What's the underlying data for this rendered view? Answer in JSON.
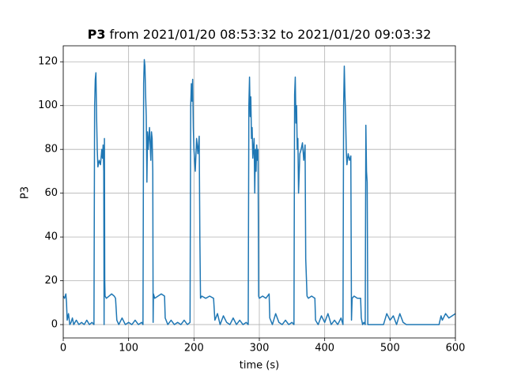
{
  "chart_data": {
    "type": "line",
    "title": {
      "name": "P3",
      "text": "from 2021/01/20 08:53:32 to 2021/01/20 09:03:32"
    },
    "xlabel": "time (s)",
    "ylabel": "P3",
    "xlim": [
      0,
      600
    ],
    "ylim": [
      -6.1,
      127.3
    ],
    "xticks": [
      0,
      100,
      200,
      300,
      400,
      500,
      600
    ],
    "yticks": [
      0,
      20,
      40,
      60,
      80,
      100,
      120
    ],
    "grid": true,
    "series": [
      {
        "name": "P3",
        "color": "#1f77b4",
        "x": [
          0,
          2,
          4,
          5,
          6,
          8,
          10,
          12,
          14,
          16,
          20,
          24,
          28,
          32,
          36,
          40,
          44,
          47,
          48,
          49,
          50,
          51,
          52,
          53,
          55,
          57,
          59,
          60,
          61,
          62,
          62.5,
          63,
          63.5,
          64,
          66,
          70,
          74,
          78,
          80,
          82,
          85,
          90,
          95,
          100,
          105,
          110,
          115,
          120,
          122,
          123,
          124,
          125,
          126,
          127,
          128,
          129,
          130,
          132,
          134,
          135,
          136,
          137,
          137.5,
          138,
          140,
          145,
          150,
          155,
          156,
          160,
          165,
          170,
          175,
          180,
          185,
          190,
          194,
          195,
          196,
          197,
          198,
          199,
          200,
          202,
          204,
          206,
          208,
          209,
          210,
          212,
          218,
          224,
          230,
          232,
          236,
          240,
          245,
          250,
          255,
          260,
          265,
          270,
          275,
          280,
          283,
          284,
          285,
          286,
          287,
          288,
          289,
          290,
          292,
          293,
          294,
          295,
          296,
          297,
          298,
          299,
          300,
          305,
          310,
          315,
          316,
          320,
          325,
          330,
          335,
          340,
          345,
          350,
          353,
          354,
          355,
          356,
          357,
          358,
          359,
          360,
          362,
          364,
          366,
          368,
          370,
          371,
          373,
          375,
          380,
          385,
          386,
          390,
          395,
          400,
          405,
          410,
          415,
          420,
          425,
          428,
          429,
          430,
          431,
          432,
          433,
          434,
          436,
          438,
          440,
          441,
          442,
          445,
          450,
          455,
          456,
          458,
          460,
          462,
          463,
          464,
          465,
          466,
          470,
          480,
          490,
          495,
          500,
          505,
          510,
          515,
          520,
          525,
          540,
          560,
          575,
          578,
          580,
          585,
          590,
          595,
          600
        ],
        "values": [
          13,
          12,
          14,
          10,
          2,
          5,
          0,
          1,
          3,
          0,
          2,
          0,
          1,
          0,
          2,
          0,
          1,
          0,
          100,
          112,
          115,
          95,
          80,
          72,
          75,
          73,
          80,
          76,
          82,
          70,
          0,
          85,
          20,
          13,
          12,
          13,
          14,
          13,
          12,
          2,
          0,
          3,
          0,
          1,
          0,
          2,
          0,
          1,
          0,
          110,
          121,
          118,
          105,
          95,
          65,
          88,
          80,
          90,
          75,
          88,
          85,
          70,
          1,
          14,
          12,
          13,
          14,
          13,
          3,
          0,
          2,
          0,
          1,
          0,
          2,
          0,
          1,
          100,
          110,
          102,
          112,
          90,
          80,
          70,
          85,
          78,
          86,
          40,
          12,
          13,
          12,
          13,
          12,
          2,
          5,
          0,
          4,
          1,
          0,
          3,
          0,
          2,
          0,
          1,
          0,
          100,
          113,
          95,
          104,
          85,
          90,
          76,
          85,
          60,
          80,
          70,
          82,
          75,
          80,
          13,
          12,
          13,
          12,
          14,
          3,
          0,
          5,
          1,
          0,
          2,
          0,
          1,
          0,
          105,
          113,
          92,
          100,
          80,
          85,
          60,
          78,
          80,
          83,
          75,
          82,
          30,
          13,
          12,
          13,
          12,
          2,
          0,
          4,
          1,
          5,
          0,
          2,
          0,
          3,
          0,
          100,
          118,
          105,
          95,
          80,
          73,
          78,
          75,
          77,
          2,
          12,
          13,
          12,
          12,
          3,
          0,
          1,
          0,
          91,
          70,
          65,
          0,
          0,
          0,
          0,
          5,
          2,
          4,
          0,
          5,
          1,
          0,
          0,
          0,
          0,
          4,
          2,
          5,
          3,
          4,
          5
        ]
      }
    ]
  }
}
